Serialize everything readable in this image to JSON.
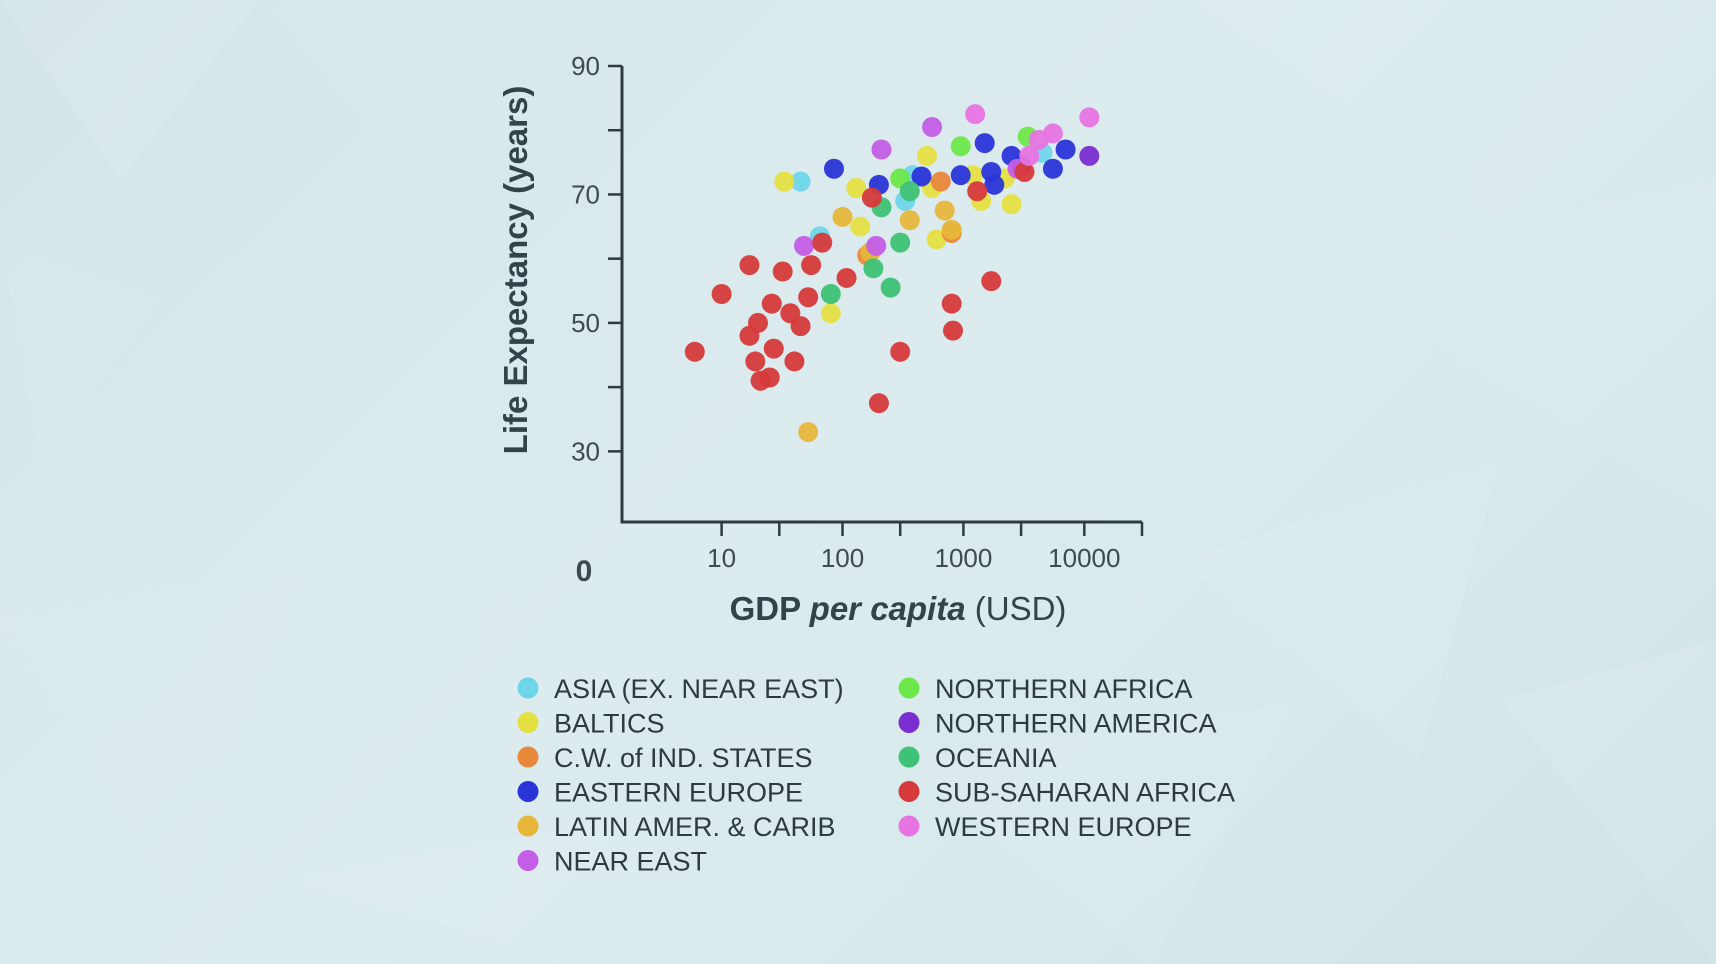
{
  "chart_data": {
    "type": "scatter",
    "title": "",
    "xlabel": {
      "main": "GDP ",
      "italic": "per capita",
      "unit": " (USD)"
    },
    "ylabel": "Life Expectancy (years)",
    "xscale": "log",
    "xlim": [
      1.5,
      30000
    ],
    "ylim": [
      19,
      90
    ],
    "origin_label": "0",
    "xticks": [
      {
        "value": 10,
        "label": "10"
      },
      {
        "value": 100,
        "label": "100"
      },
      {
        "value": 1000,
        "label": "1000"
      },
      {
        "value": 10000,
        "label": "10000"
      }
    ],
    "xminor": [
      30,
      300,
      3000,
      30000
    ],
    "yticks": [
      {
        "value": 30,
        "label": "30"
      },
      {
        "value": 50,
        "label": "50"
      },
      {
        "value": 70,
        "label": "70"
      },
      {
        "value": 90,
        "label": "90"
      }
    ],
    "yminor": [
      40,
      60,
      80
    ],
    "grid": false,
    "legend_position": "bottom",
    "series": [
      {
        "name": "ASIA (EX. NEAR EAST)",
        "color": "#6fd6ea",
        "points": [
          [
            45,
            72
          ],
          [
            65,
            63.5
          ],
          [
            330,
            69
          ],
          [
            380,
            73
          ],
          [
            4500,
            76.5
          ]
        ]
      },
      {
        "name": "BALTICS",
        "color": "#e5e042",
        "points": [
          [
            33,
            72
          ],
          [
            80,
            51.5
          ],
          [
            130,
            71
          ],
          [
            140,
            65
          ],
          [
            550,
            71
          ],
          [
            500,
            76
          ],
          [
            600,
            63
          ],
          [
            1200,
            73
          ],
          [
            1400,
            69
          ],
          [
            2200,
            72.5
          ],
          [
            2500,
            68.5
          ]
        ]
      },
      {
        "name": "C.W. of IND. STATES",
        "color": "#e8883a",
        "points": [
          [
            160,
            60.5
          ],
          [
            650,
            72
          ],
          [
            800,
            64
          ]
        ]
      },
      {
        "name": "EASTERN EUROPE",
        "color": "#2a35d8",
        "points": [
          [
            85,
            74
          ],
          [
            200,
            71.5
          ],
          [
            450,
            72.8
          ],
          [
            950,
            73
          ],
          [
            1500,
            78
          ],
          [
            1700,
            73.5
          ],
          [
            1800,
            71.5
          ],
          [
            2500,
            76
          ],
          [
            3000,
            74.5
          ],
          [
            5500,
            74
          ],
          [
            7000,
            77
          ]
        ]
      },
      {
        "name": "LATIN AMER. & CARIB",
        "color": "#e6b73a",
        "points": [
          [
            52,
            33
          ],
          [
            100,
            66.5
          ],
          [
            170,
            61
          ],
          [
            360,
            66
          ],
          [
            700,
            67.5
          ],
          [
            800,
            64.5
          ]
        ]
      },
      {
        "name": "NEAR EAST",
        "color": "#c45ee6",
        "points": [
          [
            48,
            62
          ],
          [
            190,
            62
          ],
          [
            210,
            77
          ],
          [
            550,
            80.5
          ],
          [
            2800,
            74
          ]
        ]
      },
      {
        "name": "NORTHERN AFRICA",
        "color": "#6de84a",
        "points": [
          [
            300,
            72.5
          ],
          [
            950,
            77.5
          ],
          [
            3400,
            79
          ]
        ]
      },
      {
        "name": "NORTHERN AMERICA",
        "color": "#7a2ed0",
        "points": [
          [
            11000,
            76
          ]
        ]
      },
      {
        "name": "OCEANIA",
        "color": "#3ec275",
        "points": [
          [
            80,
            54.5
          ],
          [
            180,
            58.5
          ],
          [
            210,
            68
          ],
          [
            250,
            55.5
          ],
          [
            300,
            62.5
          ],
          [
            360,
            70.5
          ]
        ]
      },
      {
        "name": "SUB-SAHARAN AFRICA",
        "color": "#d63a3a",
        "points": [
          [
            6,
            45.5
          ],
          [
            10,
            54.5
          ],
          [
            17,
            48
          ],
          [
            17,
            59
          ],
          [
            19,
            44
          ],
          [
            20,
            50
          ],
          [
            21,
            41
          ],
          [
            25,
            41.5
          ],
          [
            26,
            53
          ],
          [
            27,
            46
          ],
          [
            32,
            58
          ],
          [
            37,
            51.5
          ],
          [
            40,
            44
          ],
          [
            45,
            49.5
          ],
          [
            52,
            54
          ],
          [
            55,
            59
          ],
          [
            68,
            62.5
          ],
          [
            108,
            57
          ],
          [
            175,
            69.5
          ],
          [
            200,
            37.5
          ],
          [
            300,
            45.5
          ],
          [
            800,
            53
          ],
          [
            820,
            48.8
          ],
          [
            1300,
            70.5
          ],
          [
            1700,
            56.5
          ],
          [
            3200,
            73.5
          ]
        ]
      },
      {
        "name": "WESTERN EUROPE",
        "color": "#e874e3",
        "points": [
          [
            1250,
            82.5
          ],
          [
            3500,
            76
          ],
          [
            4200,
            78.5
          ],
          [
            5500,
            79.5
          ],
          [
            11000,
            82
          ]
        ]
      }
    ]
  }
}
